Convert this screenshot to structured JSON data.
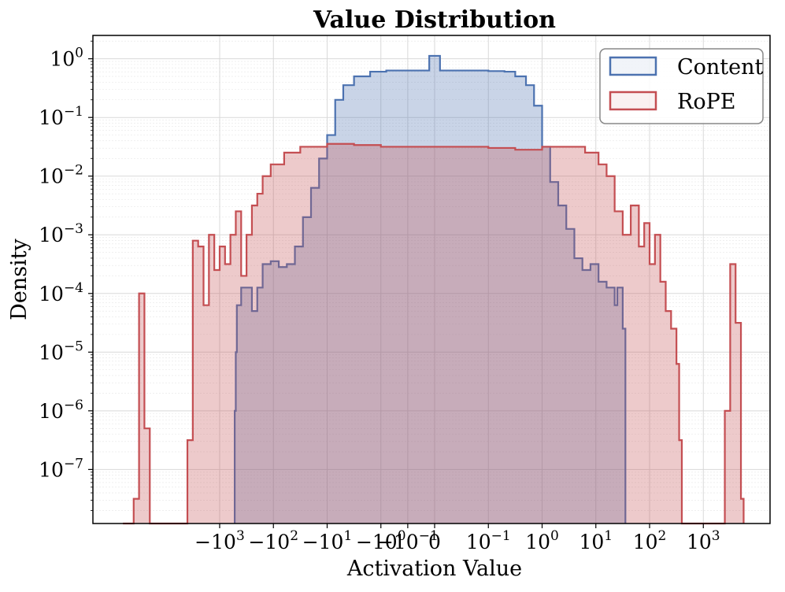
{
  "chart_data": {
    "type": "histogram-step",
    "title": "Value Distribution",
    "xlabel": "Activation Value",
    "ylabel": "Density",
    "xscale": "symlog",
    "yscale": "log",
    "ylim": [
      1.2e-08,
      2.5
    ],
    "y_ticks": [
      {
        "exp": 0,
        "base": "10",
        "sup": "0"
      },
      {
        "exp": -1,
        "base": "10",
        "sup": "−1"
      },
      {
        "exp": -2,
        "base": "10",
        "sup": "−2"
      },
      {
        "exp": -3,
        "base": "10",
        "sup": "−3"
      },
      {
        "exp": -4,
        "base": "10",
        "sup": "−4"
      },
      {
        "exp": -5,
        "base": "10",
        "sup": "−5"
      },
      {
        "exp": -6,
        "base": "10",
        "sup": "−6"
      },
      {
        "exp": -7,
        "base": "10",
        "sup": "−7"
      }
    ],
    "x_ticks": [
      {
        "pos": -4,
        "base": "−10",
        "sup": "3"
      },
      {
        "pos": -3,
        "base": "−10",
        "sup": "2"
      },
      {
        "pos": -2,
        "base": "−10",
        "sup": "1"
      },
      {
        "pos": -1,
        "base": "−10",
        "sup": "0"
      },
      {
        "pos": -0.5,
        "base": "−10",
        "sup": "−1"
      },
      {
        "pos": 0,
        "base": "0",
        "sup": ""
      },
      {
        "pos": 1,
        "base": "10",
        "sup": "−1"
      },
      {
        "pos": 2,
        "base": "10",
        "sup": "0"
      },
      {
        "pos": 3,
        "base": "10",
        "sup": "1"
      },
      {
        "pos": 4,
        "base": "10",
        "sup": "2"
      },
      {
        "pos": 5,
        "base": "10",
        "sup": "3"
      }
    ],
    "grid": true,
    "legend_position": "top-right",
    "series": [
      {
        "name": "Content",
        "color": "#4c72b0",
        "points": [
          [
            -3.72,
            -8
          ],
          [
            -3.72,
            -6
          ],
          [
            -3.7,
            -5
          ],
          [
            -3.68,
            -4.2
          ],
          [
            -3.6,
            -3.9
          ],
          [
            -3.5,
            -3.9
          ],
          [
            -3.4,
            -4.3
          ],
          [
            -3.3,
            -3.9
          ],
          [
            -3.2,
            -3.5
          ],
          [
            -3.05,
            -3.45
          ],
          [
            -2.9,
            -3.55
          ],
          [
            -2.75,
            -3.5
          ],
          [
            -2.6,
            -3.2
          ],
          [
            -2.45,
            -2.7
          ],
          [
            -2.3,
            -2.2
          ],
          [
            -2.15,
            -1.7
          ],
          [
            -2.0,
            -1.3
          ],
          [
            -1.85,
            -0.7
          ],
          [
            -1.7,
            -0.45
          ],
          [
            -1.5,
            -0.3
          ],
          [
            -1.2,
            -0.22
          ],
          [
            -0.9,
            -0.2
          ],
          [
            -0.6,
            -0.2
          ],
          [
            -0.1,
            -0.2
          ],
          [
            -0.1,
            0.05
          ],
          [
            0.1,
            0.05
          ],
          [
            0.1,
            -0.2
          ],
          [
            0.6,
            -0.2
          ],
          [
            1.0,
            -0.21
          ],
          [
            1.3,
            -0.22
          ],
          [
            1.5,
            -0.3
          ],
          [
            1.7,
            -0.45
          ],
          [
            1.85,
            -0.8
          ],
          [
            2.0,
            -1.5
          ],
          [
            2.15,
            -2.1
          ],
          [
            2.3,
            -2.5
          ],
          [
            2.45,
            -2.9
          ],
          [
            2.6,
            -3.4
          ],
          [
            2.75,
            -3.6
          ],
          [
            2.9,
            -3.5
          ],
          [
            3.05,
            -3.8
          ],
          [
            3.2,
            -3.9
          ],
          [
            3.35,
            -4.2
          ],
          [
            3.4,
            -3.9
          ],
          [
            3.5,
            -4.6
          ],
          [
            3.55,
            -6
          ],
          [
            3.55,
            -8
          ]
        ]
      },
      {
        "name": "RoPE",
        "color": "#c44e52",
        "points": [
          [
            -5.8,
            -8
          ],
          [
            -5.6,
            -7.5
          ],
          [
            -5.5,
            -4.0
          ],
          [
            -5.4,
            -6.3
          ],
          [
            -5.3,
            -8
          ],
          [
            -4.6,
            -8
          ],
          [
            -4.6,
            -6.5
          ],
          [
            -4.5,
            -3.1
          ],
          [
            -4.4,
            -3.2
          ],
          [
            -4.3,
            -4.2
          ],
          [
            -4.2,
            -3.0
          ],
          [
            -4.1,
            -3.6
          ],
          [
            -4.0,
            -3.2
          ],
          [
            -3.9,
            -3.5
          ],
          [
            -3.8,
            -3.0
          ],
          [
            -3.7,
            -2.6
          ],
          [
            -3.6,
            -3.7
          ],
          [
            -3.5,
            -3.0
          ],
          [
            -3.4,
            -2.5
          ],
          [
            -3.3,
            -2.3
          ],
          [
            -3.2,
            -2.0
          ],
          [
            -3.05,
            -1.8
          ],
          [
            -2.8,
            -1.6
          ],
          [
            -2.5,
            -1.5
          ],
          [
            -2.0,
            -1.45
          ],
          [
            -1.5,
            -1.47
          ],
          [
            -1.0,
            -1.5
          ],
          [
            0.0,
            -1.5
          ],
          [
            1.0,
            -1.52
          ],
          [
            1.5,
            -1.55
          ],
          [
            2.0,
            -1.5
          ],
          [
            2.5,
            -1.5
          ],
          [
            2.8,
            -1.6
          ],
          [
            3.05,
            -1.8
          ],
          [
            3.2,
            -2.0
          ],
          [
            3.35,
            -2.6
          ],
          [
            3.5,
            -3.0
          ],
          [
            3.65,
            -2.5
          ],
          [
            3.8,
            -3.2
          ],
          [
            3.9,
            -2.8
          ],
          [
            4.0,
            -3.5
          ],
          [
            4.1,
            -3.0
          ],
          [
            4.2,
            -3.8
          ],
          [
            4.3,
            -4.3
          ],
          [
            4.4,
            -4.6
          ],
          [
            4.5,
            -5.2
          ],
          [
            4.55,
            -6.5
          ],
          [
            4.6,
            -8
          ],
          [
            5.3,
            -8
          ],
          [
            5.4,
            -6.0
          ],
          [
            5.5,
            -3.5
          ],
          [
            5.6,
            -4.5
          ],
          [
            5.7,
            -7.5
          ],
          [
            5.75,
            -8
          ]
        ]
      }
    ]
  }
}
